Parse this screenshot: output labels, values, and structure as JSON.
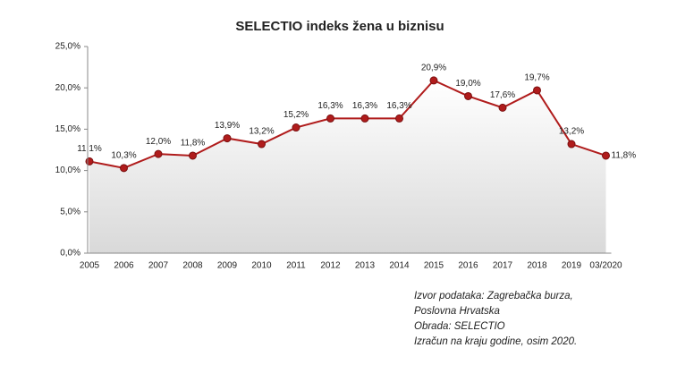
{
  "chart_data": {
    "type": "line",
    "title": "SELECTIO  indeks žena u biznisu",
    "categories": [
      "2005",
      "2006",
      "2007",
      "2008",
      "2009",
      "2010",
      "2011",
      "2012",
      "2013",
      "2014",
      "2015",
      "2016",
      "2017",
      "2018",
      "2019",
      "03/2020"
    ],
    "series": [
      {
        "name": "SELECTIO indeks",
        "color": "#b01c1c",
        "values": [
          11.1,
          10.3,
          12.0,
          11.8,
          13.9,
          13.2,
          15.2,
          16.3,
          16.3,
          16.3,
          20.9,
          19.0,
          17.6,
          19.7,
          13.2,
          11.8
        ],
        "value_labels": [
          "11,1%",
          "10,3%",
          "12,0%",
          "11,8%",
          "13,9%",
          "13,2%",
          "15,2%",
          "16,3%",
          "16,3%",
          "16,3%",
          "20,9%",
          "19,0%",
          "17,6%",
          "19,7%",
          "13,2%",
          "11,8%"
        ]
      }
    ],
    "ylim": [
      0,
      25
    ],
    "yticks": [
      {
        "value": 0,
        "label": "0,0%"
      },
      {
        "value": 5,
        "label": "5,0%"
      },
      {
        "value": 10,
        "label": "10,0%"
      },
      {
        "value": 15,
        "label": "15,0%"
      },
      {
        "value": 20,
        "label": "20,0%"
      },
      {
        "value": 25,
        "label": "25,0%"
      }
    ],
    "grid": false,
    "notes": [
      "Izvor podataka: Zagrebačka burza,",
      "Poslovna Hrvatska",
      "Obrada: SELECTIO",
      "Izračun na kraju godine, osim 2020."
    ]
  }
}
